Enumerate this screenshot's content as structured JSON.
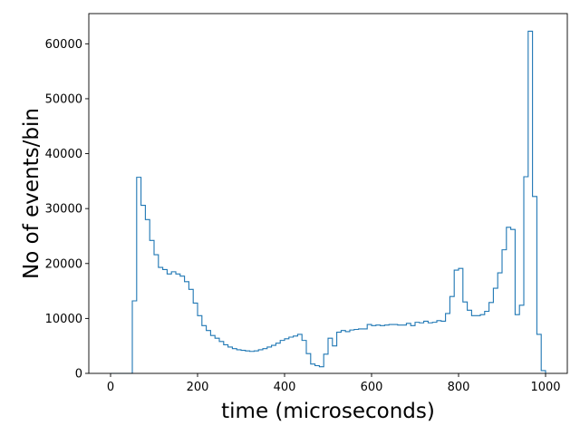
{
  "chart_data": {
    "type": "histogram-step",
    "title": "",
    "xlabel": "time (microseconds)",
    "ylabel": "No of events/bin",
    "xlim": [
      -50,
      1050
    ],
    "ylim": [
      0,
      65500
    ],
    "x_ticks": [
      0,
      200,
      400,
      600,
      800,
      1000
    ],
    "y_ticks": [
      0,
      10000,
      20000,
      30000,
      40000,
      50000,
      60000
    ],
    "line_color": "#1f77b4",
    "grid": false,
    "legend": "none",
    "bin_edges": [
      0,
      10,
      20,
      30,
      40,
      50,
      60,
      70,
      80,
      90,
      100,
      110,
      120,
      130,
      140,
      150,
      160,
      170,
      180,
      190,
      200,
      210,
      220,
      230,
      240,
      250,
      260,
      270,
      280,
      290,
      300,
      310,
      320,
      330,
      340,
      350,
      360,
      370,
      380,
      390,
      400,
      410,
      420,
      430,
      440,
      450,
      460,
      470,
      480,
      490,
      500,
      510,
      520,
      530,
      540,
      550,
      560,
      570,
      580,
      590,
      600,
      610,
      620,
      630,
      640,
      650,
      660,
      670,
      680,
      690,
      700,
      710,
      720,
      730,
      740,
      750,
      760,
      770,
      780,
      790,
      800,
      810,
      820,
      830,
      840,
      850,
      860,
      870,
      880,
      890,
      900,
      910,
      920,
      930,
      940,
      950,
      960,
      970,
      980,
      990,
      1000
    ],
    "counts": [
      0,
      0,
      0,
      0,
      0,
      13200,
      35700,
      30600,
      28000,
      24200,
      21600,
      19300,
      18900,
      18100,
      18500,
      18100,
      17700,
      16700,
      15300,
      12800,
      10500,
      8700,
      7800,
      6900,
      6400,
      5800,
      5200,
      4800,
      4500,
      4300,
      4200,
      4100,
      4000,
      4100,
      4300,
      4500,
      4800,
      5100,
      5500,
      6000,
      6300,
      6600,
      6800,
      7100,
      6000,
      3600,
      1700,
      1400,
      1200,
      3500,
      6400,
      5000,
      7500,
      7800,
      7600,
      7900,
      8000,
      8100,
      8100,
      8900,
      8700,
      8800,
      8700,
      8800,
      8900,
      8900,
      8800,
      8800,
      9100,
      8700,
      9300,
      9200,
      9500,
      9200,
      9300,
      9600,
      9500,
      10900,
      14000,
      18800,
      19100,
      13000,
      11500,
      10500,
      10500,
      10700,
      11300,
      12900,
      15500,
      18300,
      22500,
      26600,
      26200,
      10700,
      12400,
      35800,
      62300,
      32200,
      7100,
      500
    ]
  }
}
